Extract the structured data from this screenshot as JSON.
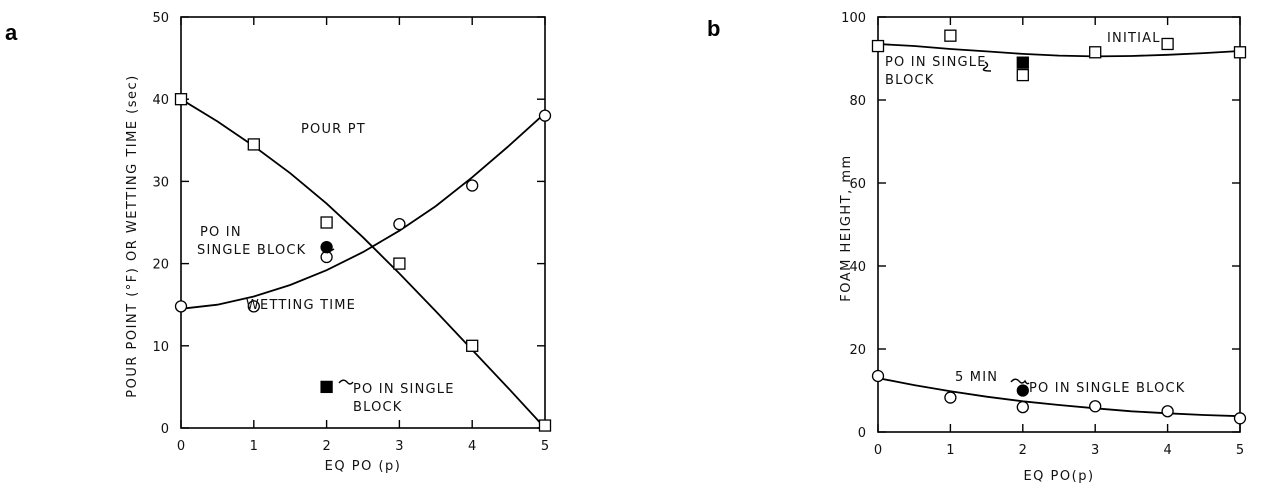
{
  "chart_data": [
    {
      "type": "scatter",
      "panel_label": "a",
      "xlabel": "EQ PO (p)",
      "ylabel": "POUR POINT (°F) OR WETTING TIME (sec)",
      "xlim": [
        0,
        5
      ],
      "ylim": [
        0,
        50
      ],
      "x_ticks": [
        "0",
        "1",
        "2",
        "3",
        "4",
        "5"
      ],
      "y_ticks": [
        "0",
        "10",
        "20",
        "30",
        "40",
        "50"
      ],
      "series": [
        {
          "name": "POUR PT",
          "marker": "square",
          "x": [
            0,
            1,
            2,
            3,
            4,
            5
          ],
          "y": [
            40,
            34.5,
            25,
            20,
            10,
            0.3
          ],
          "fit": {
            "x": [
              0,
              0.5,
              1,
              1.5,
              2,
              2.5,
              3,
              3.5,
              4,
              4.5,
              5
            ],
            "y": [
              40,
              37.3,
              34.3,
              31,
              27.3,
              23.2,
              18.8,
              14.2,
              9.5,
              4.8,
              0
            ]
          }
        },
        {
          "name": "WETTING TIME",
          "marker": "circle",
          "x": [
            0,
            1,
            2,
            3,
            4,
            5
          ],
          "y": [
            14.8,
            14.8,
            20.8,
            24.8,
            29.5,
            38
          ],
          "fit": {
            "x": [
              0,
              0.5,
              1,
              1.5,
              2,
              2.5,
              3,
              3.5,
              4,
              4.5,
              5
            ],
            "y": [
              14.5,
              15,
              16,
              17.4,
              19.2,
              21.4,
              24,
              27,
              30.5,
              34.3,
              38.3
            ]
          }
        }
      ],
      "special_points": [
        {
          "label": "PO IN SINGLE BLOCK",
          "marker": "filled-circle",
          "x": 2,
          "y": 22
        },
        {
          "label": "PO IN SINGLE BLOCK",
          "marker": "filled-square",
          "x": 2,
          "y": 5
        }
      ],
      "annotations": [
        {
          "text": "POUR PT"
        },
        {
          "text": "WETTING TIME"
        },
        {
          "text": "PO IN"
        },
        {
          "text": "SINGLE BLOCK"
        },
        {
          "text": "PO IN SINGLE"
        },
        {
          "text": "BLOCK"
        }
      ]
    },
    {
      "type": "scatter",
      "panel_label": "b",
      "xlabel": "EQ PO(p)",
      "ylabel": "FOAM HEIGHT, mm",
      "xlim": [
        0,
        5
      ],
      "ylim": [
        0,
        100
      ],
      "x_ticks": [
        "0",
        "1",
        "2",
        "3",
        "4",
        "5"
      ],
      "y_ticks": [
        "0",
        "20",
        "40",
        "60",
        "80",
        "100"
      ],
      "series": [
        {
          "name": "INITIAL",
          "marker": "square",
          "x": [
            0,
            1,
            2,
            3,
            4,
            5
          ],
          "y": [
            93,
            95.5,
            86,
            91.5,
            93.5,
            91.5
          ],
          "fit": {
            "x": [
              0,
              0.5,
              1,
              1.5,
              2,
              2.5,
              3,
              3.5,
              4,
              4.5,
              5
            ],
            "y": [
              93.5,
              93,
              92.3,
              91.7,
              91.1,
              90.7,
              90.5,
              90.6,
              90.9,
              91.3,
              91.8
            ]
          }
        },
        {
          "name": "5 MIN",
          "marker": "circle",
          "x": [
            0,
            1,
            2,
            3,
            4,
            5
          ],
          "y": [
            13.5,
            8.3,
            6,
            6.2,
            5,
            3.3
          ],
          "fit": {
            "x": [
              0,
              0.5,
              1,
              1.5,
              2,
              2.5,
              3,
              3.5,
              4,
              4.5,
              5
            ],
            "y": [
              13,
              11.3,
              9.8,
              8.5,
              7.4,
              6.5,
              5.7,
              5,
              4.5,
              4.1,
              3.8
            ]
          }
        }
      ],
      "special_points": [
        {
          "label": "PO IN SINGLE BLOCK",
          "marker": "filled-square",
          "x": 2,
          "y": 89
        },
        {
          "label": "PO IN SINGLE BLOCK",
          "marker": "filled-circle",
          "x": 2,
          "y": 10
        }
      ],
      "annotations": [
        {
          "text": "INITIAL"
        },
        {
          "text": "PO IN SINGLE"
        },
        {
          "text": "BLOCK"
        },
        {
          "text": "5 MIN"
        },
        {
          "text": "PO IN SINGLE BLOCK"
        }
      ]
    }
  ]
}
